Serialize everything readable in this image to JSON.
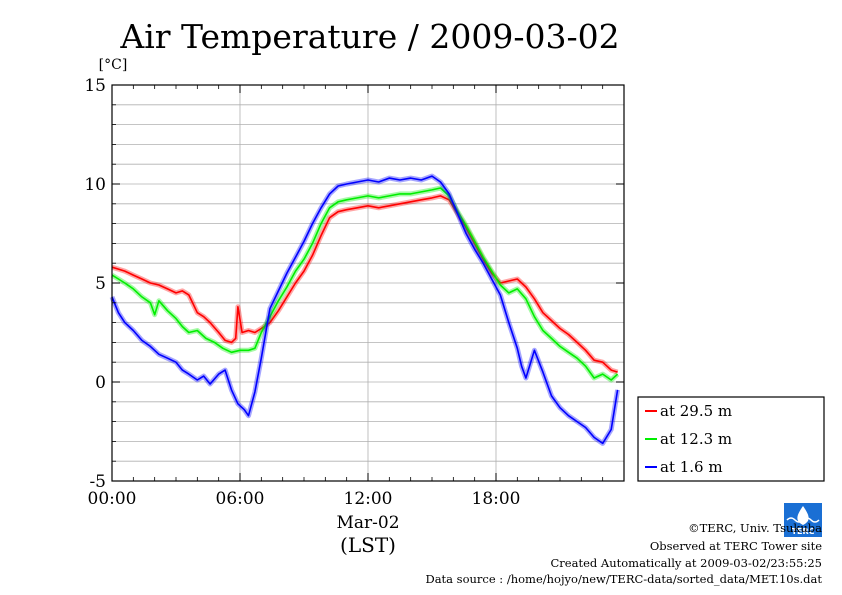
{
  "chart_data": {
    "type": "line",
    "title": "Air Temperature / 2009-03-02",
    "ylabel": "[°C]",
    "xlabel_date": "Mar-02",
    "xlabel_unit": "(LST)",
    "ylim": [
      -5,
      15
    ],
    "xlim": [
      0,
      24
    ],
    "yticks": [
      {
        "value": 15,
        "label": "15"
      },
      {
        "value": 10,
        "label": "10"
      },
      {
        "value": 5,
        "label": "5"
      },
      {
        "value": 0,
        "label": "0"
      },
      {
        "value": -5,
        "label": "-5"
      }
    ],
    "xticks": [
      {
        "value": 0,
        "label": "00:00"
      },
      {
        "value": 6,
        "label": "06:00"
      },
      {
        "value": 12,
        "label": "12:00"
      },
      {
        "value": 18,
        "label": "18:00"
      }
    ],
    "grid": true,
    "legend_position": "right",
    "series": [
      {
        "name": "at 29.5 m",
        "color": "#ff0000",
        "x": [
          0,
          0.3,
          0.6,
          1.0,
          1.4,
          1.8,
          2.2,
          2.6,
          3.0,
          3.3,
          3.6,
          4.0,
          4.3,
          4.6,
          5.0,
          5.3,
          5.6,
          5.8,
          5.9,
          6.1,
          6.4,
          6.7,
          7.0,
          7.4,
          7.8,
          8.2,
          8.6,
          9.0,
          9.4,
          9.8,
          10.2,
          10.6,
          11.0,
          11.5,
          12.0,
          12.5,
          13.0,
          13.5,
          14.0,
          14.5,
          15.0,
          15.4,
          15.8,
          16.2,
          16.6,
          17.0,
          17.4,
          17.8,
          18.2,
          18.6,
          19.0,
          19.4,
          19.8,
          20.2,
          20.6,
          21.0,
          21.4,
          21.8,
          22.2,
          22.6,
          23.0,
          23.4,
          23.7
        ],
        "values": [
          5.8,
          5.7,
          5.6,
          5.4,
          5.2,
          5.0,
          4.9,
          4.7,
          4.5,
          4.6,
          4.4,
          3.5,
          3.3,
          3.0,
          2.5,
          2.1,
          2.0,
          2.2,
          3.8,
          2.5,
          2.6,
          2.5,
          2.7,
          3.0,
          3.6,
          4.3,
          5.0,
          5.6,
          6.4,
          7.4,
          8.3,
          8.6,
          8.7,
          8.8,
          8.9,
          8.8,
          8.9,
          9.0,
          9.1,
          9.2,
          9.3,
          9.4,
          9.2,
          8.5,
          7.8,
          7.0,
          6.2,
          5.5,
          5.0,
          5.1,
          5.2,
          4.8,
          4.2,
          3.5,
          3.1,
          2.7,
          2.4,
          2.0,
          1.6,
          1.1,
          1.0,
          0.6,
          0.5
        ]
      },
      {
        "name": "at 12.3 m",
        "color": "#00ee00",
        "x": [
          0,
          0.3,
          0.6,
          1.0,
          1.4,
          1.8,
          2.0,
          2.2,
          2.6,
          3.0,
          3.3,
          3.6,
          4.0,
          4.4,
          4.8,
          5.2,
          5.6,
          6.0,
          6.4,
          6.7,
          7.0,
          7.4,
          7.8,
          8.2,
          8.6,
          9.0,
          9.4,
          9.8,
          10.2,
          10.6,
          11.0,
          11.5,
          12.0,
          12.5,
          13.0,
          13.5,
          14.0,
          14.5,
          15.0,
          15.4,
          15.8,
          16.2,
          16.6,
          17.0,
          17.4,
          17.8,
          18.2,
          18.6,
          19.0,
          19.4,
          19.8,
          20.2,
          20.6,
          21.0,
          21.4,
          21.8,
          22.2,
          22.6,
          23.0,
          23.4,
          23.7
        ],
        "values": [
          5.4,
          5.2,
          5.0,
          4.7,
          4.3,
          4.0,
          3.4,
          4.1,
          3.6,
          3.2,
          2.8,
          2.5,
          2.6,
          2.2,
          2.0,
          1.7,
          1.5,
          1.6,
          1.6,
          1.7,
          2.5,
          3.3,
          4.1,
          4.8,
          5.6,
          6.2,
          7.0,
          8.0,
          8.8,
          9.1,
          9.2,
          9.3,
          9.4,
          9.3,
          9.4,
          9.5,
          9.5,
          9.6,
          9.7,
          9.8,
          9.4,
          8.6,
          7.9,
          7.1,
          6.3,
          5.6,
          4.9,
          4.5,
          4.7,
          4.2,
          3.3,
          2.6,
          2.2,
          1.8,
          1.5,
          1.2,
          0.8,
          0.2,
          0.4,
          0.1,
          0.4
        ]
      },
      {
        "name": "at 1.6 m",
        "color": "#0000ff",
        "x": [
          0,
          0.3,
          0.6,
          1.0,
          1.4,
          1.8,
          2.2,
          2.6,
          3.0,
          3.3,
          3.6,
          4.0,
          4.3,
          4.6,
          5.0,
          5.3,
          5.6,
          5.9,
          6.2,
          6.4,
          6.7,
          7.0,
          7.4,
          7.8,
          8.2,
          8.6,
          9.0,
          9.4,
          9.8,
          10.2,
          10.6,
          11.0,
          11.5,
          12.0,
          12.5,
          13.0,
          13.5,
          14.0,
          14.5,
          15.0,
          15.4,
          15.8,
          16.2,
          16.6,
          17.0,
          17.4,
          17.8,
          18.2,
          18.6,
          19.0,
          19.2,
          19.4,
          19.8,
          20.2,
          20.6,
          21.0,
          21.4,
          21.8,
          22.2,
          22.6,
          23.0,
          23.4,
          23.7
        ],
        "values": [
          4.3,
          3.5,
          3.0,
          2.6,
          2.1,
          1.8,
          1.4,
          1.2,
          1.0,
          0.6,
          0.4,
          0.1,
          0.3,
          -0.1,
          0.4,
          0.6,
          -0.4,
          -1.1,
          -1.4,
          -1.7,
          -0.5,
          1.2,
          3.7,
          4.6,
          5.5,
          6.3,
          7.1,
          8.0,
          8.8,
          9.5,
          9.9,
          10.0,
          10.1,
          10.2,
          10.1,
          10.3,
          10.2,
          10.3,
          10.2,
          10.4,
          10.1,
          9.5,
          8.5,
          7.5,
          6.7,
          6.0,
          5.2,
          4.4,
          3.0,
          1.7,
          0.8,
          0.2,
          1.6,
          0.5,
          -0.7,
          -1.3,
          -1.7,
          -2.0,
          -2.3,
          -2.8,
          -3.1,
          -2.4,
          -0.4
        ]
      }
    ]
  },
  "footer": {
    "copyright": "©TERC, Univ. Tsukuba",
    "site": "Observed at TERC Tower site",
    "created": "Created Automatically at 2009-03-02/23:55:25",
    "source": "Data source : /home/hojyo/new/TERC-data/sorted_data/MET.10s.dat"
  },
  "logo": {
    "text": "TERC",
    "color": "#1a6fd4"
  }
}
